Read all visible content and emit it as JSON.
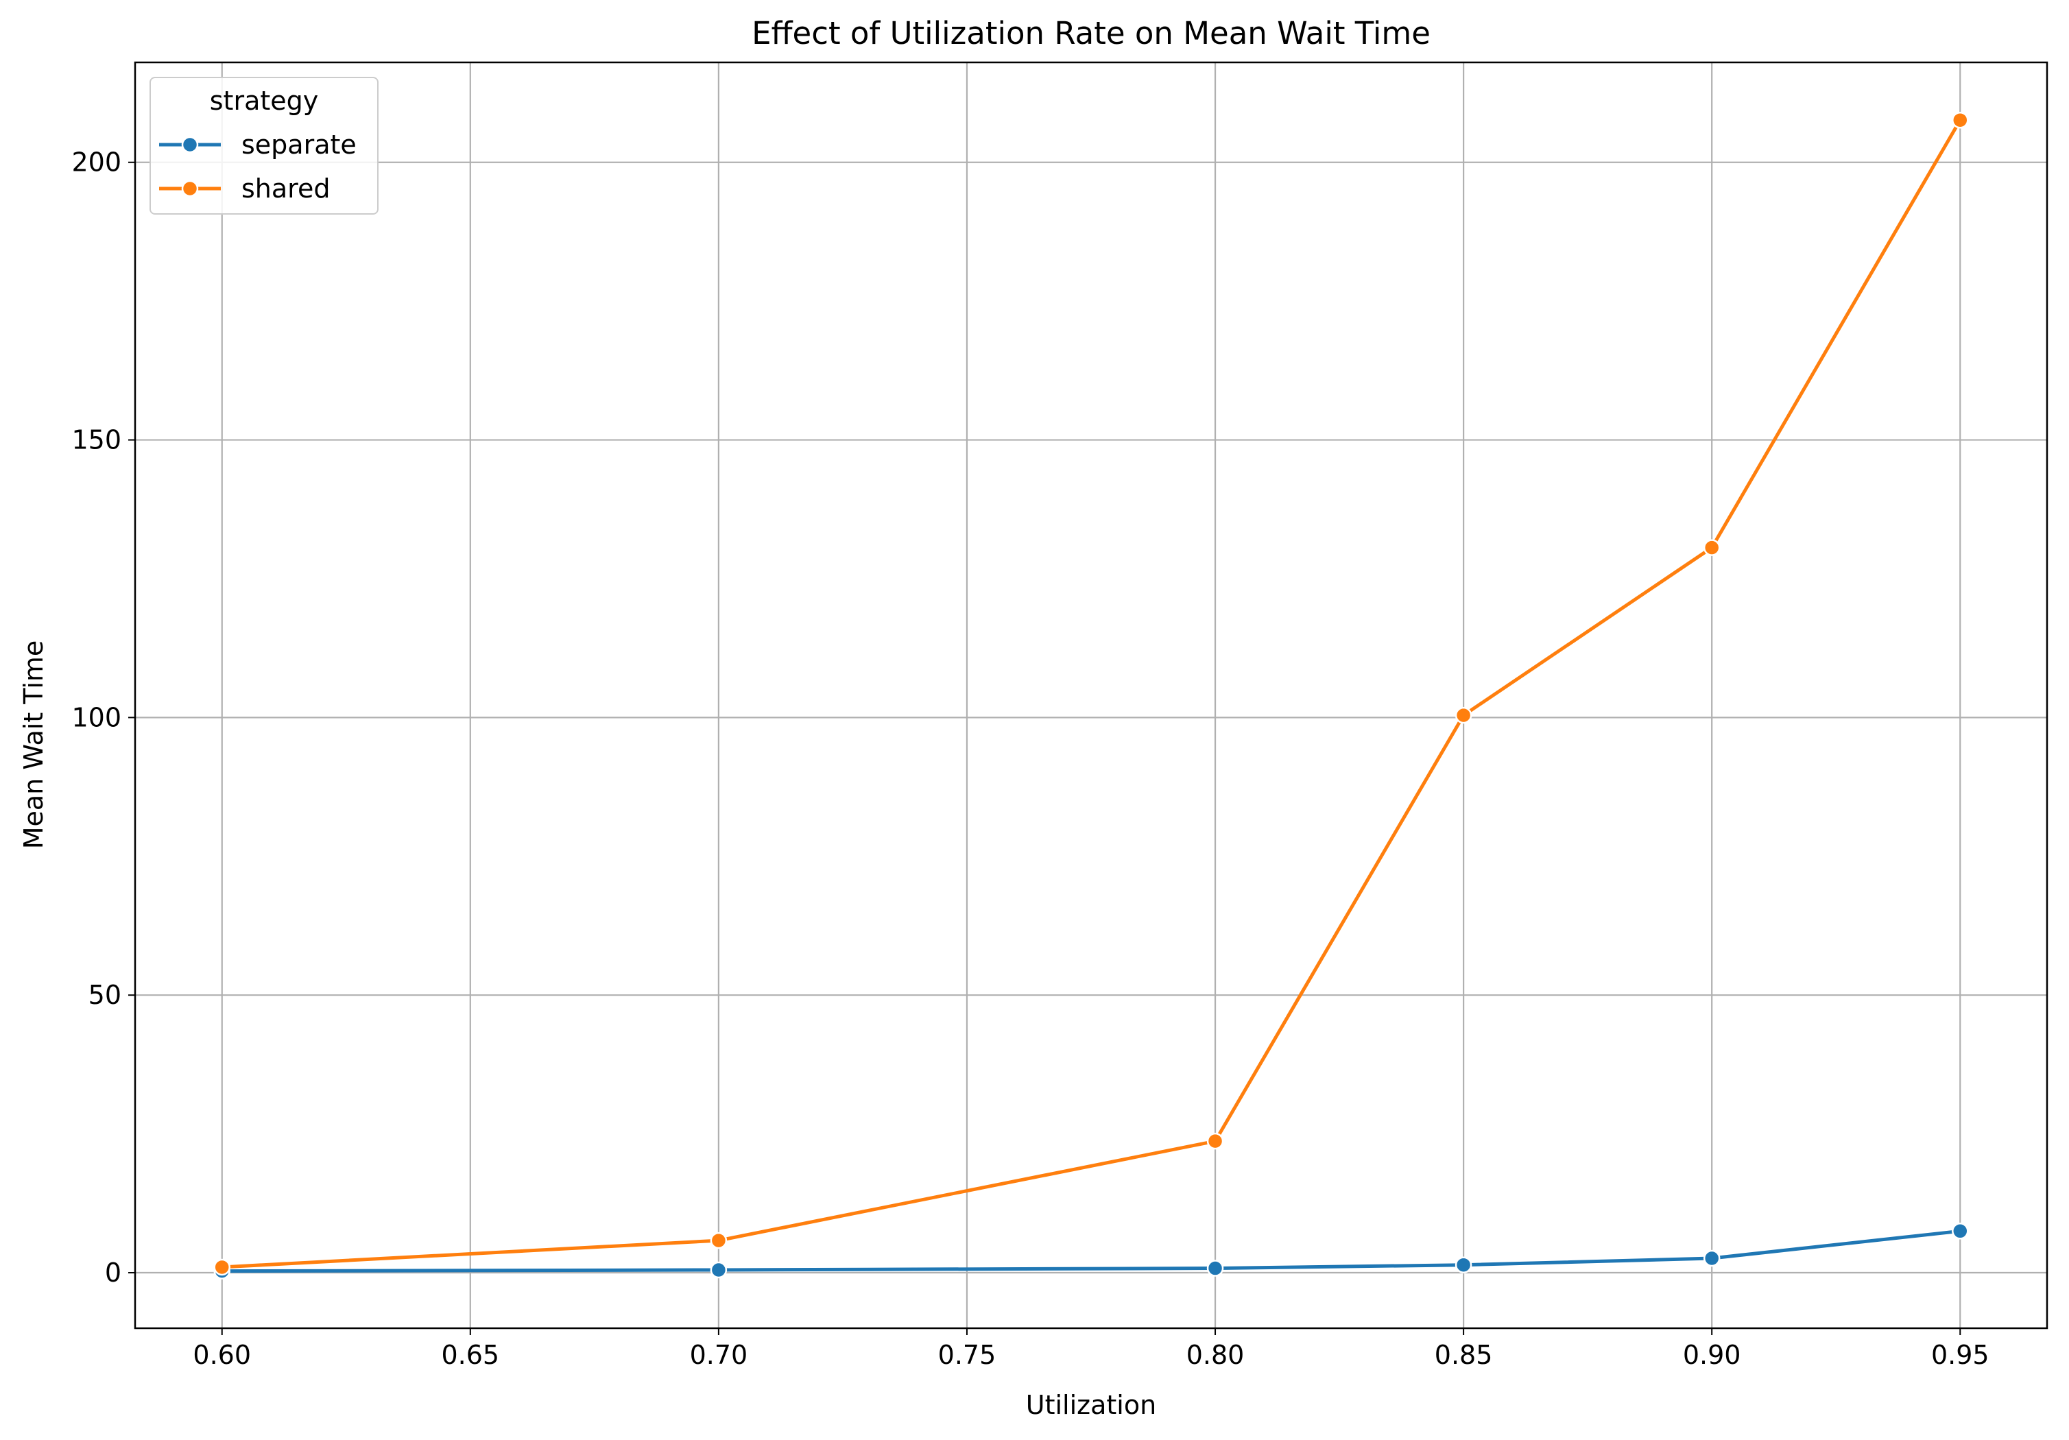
{
  "chart_data": {
    "type": "line",
    "title": "Effect of Utilization Rate on Mean Wait Time",
    "xlabel": "Utilization",
    "ylabel": "Mean Wait Time",
    "xlim": [
      0.5825,
      0.9675
    ],
    "ylim": [
      -10,
      218
    ],
    "x_ticks": [
      0.6,
      0.65,
      0.7,
      0.75,
      0.8,
      0.85,
      0.9,
      0.95
    ],
    "x_tick_labels": [
      "0.60",
      "0.65",
      "0.70",
      "0.75",
      "0.80",
      "0.85",
      "0.90",
      "0.95"
    ],
    "y_ticks": [
      0,
      50,
      100,
      150,
      200
    ],
    "y_tick_labels": [
      "0",
      "50",
      "100",
      "150",
      "200"
    ],
    "grid": true,
    "legend": {
      "title": "strategy",
      "placement": "top-left"
    },
    "series": [
      {
        "name": "separate",
        "color": "#1f77b4",
        "x": [
          0.6,
          0.7,
          0.8,
          0.85,
          0.9,
          0.95
        ],
        "y": [
          0.3,
          0.5,
          0.8,
          1.4,
          2.6,
          7.5
        ]
      },
      {
        "name": "shared",
        "color": "#ff7f0e",
        "x": [
          0.6,
          0.7,
          0.8,
          0.85,
          0.9,
          0.95
        ],
        "y": [
          1.0,
          5.8,
          23.7,
          100.4,
          130.6,
          207.6
        ]
      }
    ]
  }
}
